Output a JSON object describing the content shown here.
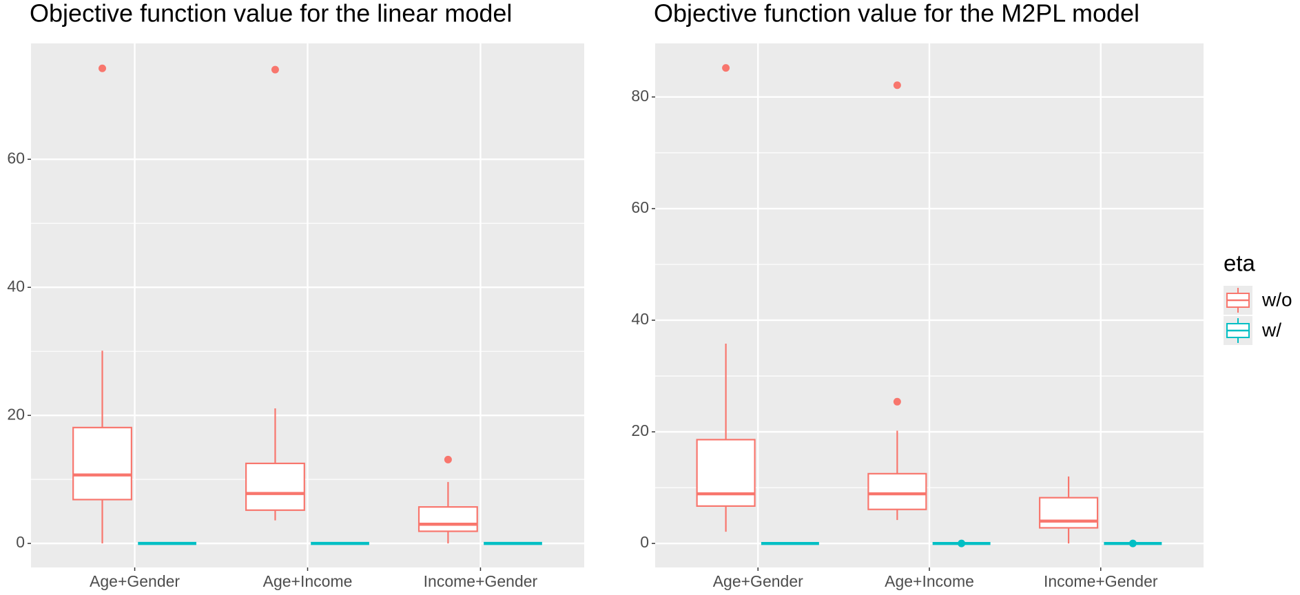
{
  "chart_data": [
    {
      "type": "box",
      "title": "Objective function value for the linear model",
      "categories": [
        "Age+Gender",
        "Age+Income",
        "Income+Gender"
      ],
      "ylim": [
        -3.75,
        78.1
      ],
      "yticks": [
        0,
        20,
        40,
        60
      ],
      "grid": true,
      "series": [
        {
          "name": "w/o",
          "color": "#F8766D",
          "boxes": [
            {
              "min": 0,
              "q1": 6.85,
              "median": 10.7,
              "q3": 18.1,
              "max": 30.1,
              "outliers": [
                74.2
              ]
            },
            {
              "min": 3.6,
              "q1": 5.2,
              "median": 7.8,
              "q3": 12.5,
              "max": 21.1,
              "outliers": [
                74.0
              ]
            },
            {
              "min": 0,
              "q1": 1.9,
              "median": 3.0,
              "q3": 5.7,
              "max": 9.6,
              "outliers": [
                13.1
              ]
            }
          ]
        },
        {
          "name": "w/",
          "color": "#00BFC4",
          "boxes": [
            {
              "min": 0,
              "q1": 0,
              "median": 0,
              "q3": 0,
              "max": 0,
              "outliers": []
            },
            {
              "min": 0,
              "q1": 0,
              "median": 0,
              "q3": 0,
              "max": 0,
              "outliers": []
            },
            {
              "min": 0,
              "q1": 0,
              "median": 0,
              "q3": 0,
              "max": 0,
              "outliers": []
            }
          ]
        }
      ]
    },
    {
      "type": "box",
      "title": "Objective function value for the M2PL model",
      "categories": [
        "Age+Gender",
        "Age+Income",
        "Income+Gender"
      ],
      "ylim": [
        -4.3,
        89.6
      ],
      "yticks": [
        0,
        20,
        40,
        60,
        80
      ],
      "grid": true,
      "legend_title": "eta",
      "legend": "right",
      "series": [
        {
          "name": "w/o",
          "color": "#F8766D",
          "boxes": [
            {
              "min": 2.1,
              "q1": 6.7,
              "median": 8.9,
              "q3": 18.6,
              "max": 35.8,
              "outliers": [
                85.2
              ]
            },
            {
              "min": 4.2,
              "q1": 6.1,
              "median": 8.9,
              "q3": 12.5,
              "max": 20.2,
              "outliers": [
                82.1,
                25.4
              ]
            },
            {
              "min": 0,
              "q1": 2.8,
              "median": 4.0,
              "q3": 8.2,
              "max": 12.0,
              "outliers": []
            }
          ]
        },
        {
          "name": "w/",
          "color": "#00BFC4",
          "boxes": [
            {
              "min": 0,
              "q1": 0,
              "median": 0,
              "q3": 0,
              "max": 0,
              "outliers": []
            },
            {
              "min": 0,
              "q1": 0,
              "median": 0,
              "q3": 0,
              "max": 0,
              "outliers": [
                0
              ]
            },
            {
              "min": 0,
              "q1": 0,
              "median": 0,
              "q3": 0,
              "max": 0,
              "outliers": [
                0
              ]
            }
          ]
        }
      ]
    }
  ]
}
